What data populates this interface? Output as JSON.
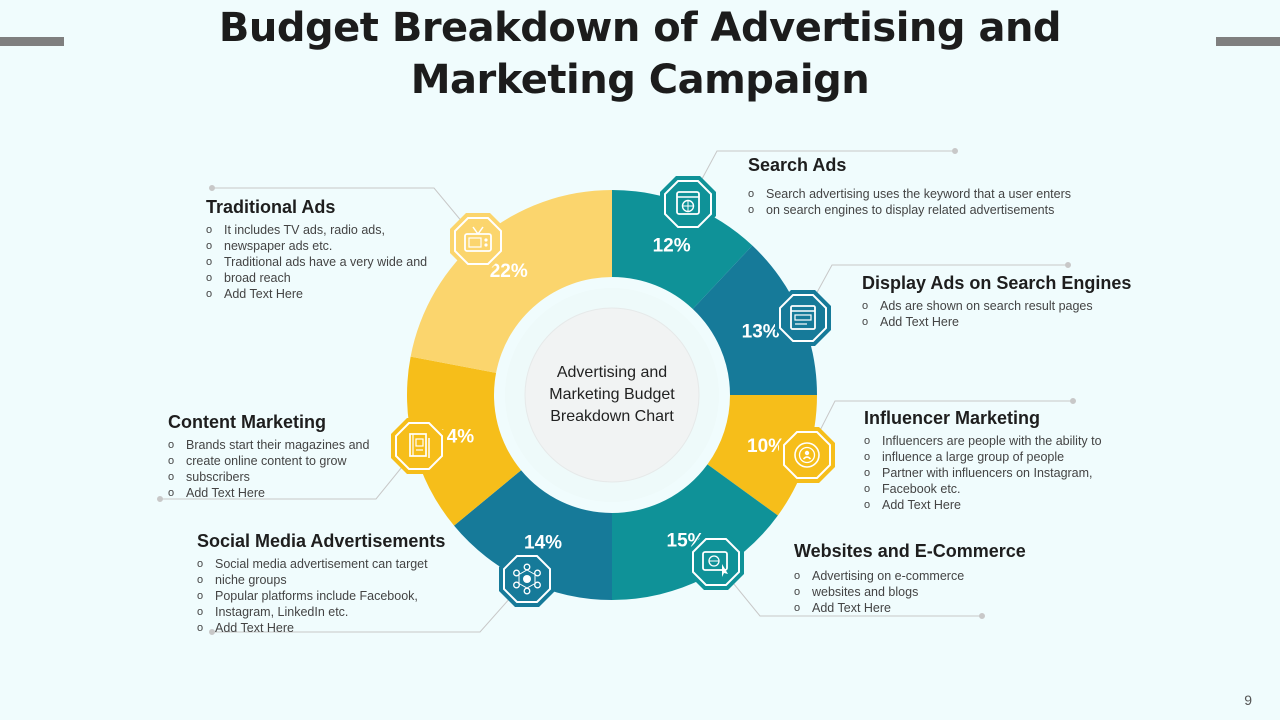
{
  "title": {
    "line1": "Budget Breakdown of Advertising and",
    "line2": "Marketing Campaign"
  },
  "center_label": "Advertising and Marketing Budget Breakdown Chart",
  "page_number": "9",
  "chart_data": {
    "type": "pie",
    "variant": "donut",
    "title": "Budget Breakdown of Advertising and Marketing Campaign",
    "center_label": "Advertising and Marketing Budget Breakdown Chart",
    "unit": "%",
    "slices": [
      {
        "name": "Search Ads",
        "value": 12,
        "label": "12%",
        "color": "#0f9298",
        "icon": "browser-globe-icon"
      },
      {
        "name": "Display Ads on Search Engines",
        "value": 13,
        "label": "13%",
        "color": "#167a99",
        "icon": "web-display-icon"
      },
      {
        "name": "Influencer Marketing",
        "value": 10,
        "label": "10%",
        "color": "#f6be1a",
        "icon": "influencer-icon"
      },
      {
        "name": "Websites and E-Commerce",
        "value": 15,
        "label": "15%",
        "color": "#0f9298",
        "icon": "website-click-icon"
      },
      {
        "name": "Social Media Advertisements",
        "value": 14,
        "label": "14%",
        "color": "#167a99",
        "icon": "social-network-icon"
      },
      {
        "name": "Content Marketing",
        "value": 14,
        "label": "14%",
        "color": "#f6be1a",
        "icon": "content-book-icon"
      },
      {
        "name": "Traditional Ads",
        "value": 22,
        "label": "22%",
        "color": "#fbd56d",
        "icon": "tv-icon"
      }
    ]
  },
  "sections": {
    "search_ads": {
      "title": "Search Ads",
      "bullets": [
        "Search advertising uses the keyword that a user enters",
        "on search engines to display related advertisements"
      ]
    },
    "display_ads": {
      "title": "Display Ads on Search Engines",
      "bullets": [
        "Ads are shown on search result pages",
        "Add Text Here"
      ]
    },
    "influencer": {
      "title": "Influencer Marketing",
      "bullets": [
        "Influencers are people with the ability to",
        "influence a large group of people",
        "Partner with influencers on Instagram,",
        "Facebook etc.",
        "Add Text Here"
      ]
    },
    "websites": {
      "title": "Websites and E-Commerce",
      "bullets": [
        "Advertising on e-commerce",
        "websites and blogs",
        "Add Text Here"
      ]
    },
    "social_media": {
      "title": "Social Media Advertisements",
      "bullets": [
        "Social media advertisement  can target",
        "niche groups",
        "Popular platforms include Facebook,",
        "Instagram, LinkedIn etc.",
        "Add Text Here"
      ]
    },
    "content_marketing": {
      "title": "Content Marketing",
      "bullets": [
        "Brands start their magazines and",
        "create online content to grow",
        "subscribers",
        "Add Text Here"
      ]
    },
    "traditional_ads": {
      "title": "Traditional Ads",
      "bullets": [
        "It includes TV ads, radio ads,",
        "newspaper ads etc.",
        "Traditional  ads have  a very  wide and",
        "broad reach",
        "Add Text Here"
      ]
    }
  }
}
